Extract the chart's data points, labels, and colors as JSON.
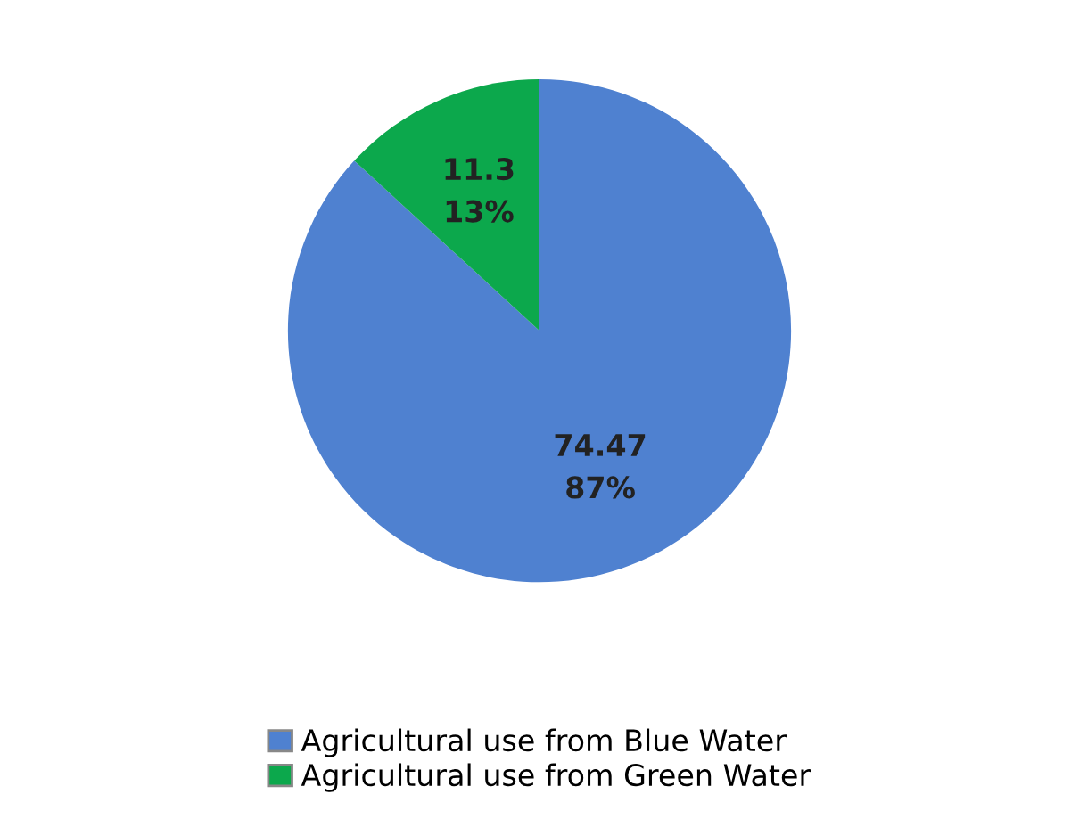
{
  "chart_data": {
    "type": "pie",
    "categories": [
      "Agricultural use from Blue Water",
      "Agricultural use from Green Water"
    ],
    "values": [
      74.47,
      11.3
    ],
    "value_labels": [
      "74.47\n87%",
      "11.3\n13%"
    ],
    "colors": [
      "#4f81d0",
      "#0ca84c"
    ],
    "legend": "bottom"
  }
}
